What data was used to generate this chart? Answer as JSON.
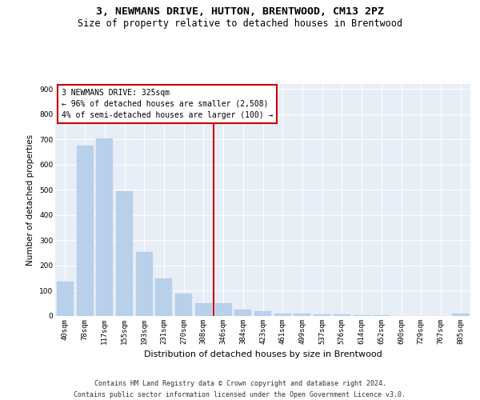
{
  "title": "3, NEWMANS DRIVE, HUTTON, BRENTWOOD, CM13 2PZ",
  "subtitle": "Size of property relative to detached houses in Brentwood",
  "xlabel": "Distribution of detached houses by size in Brentwood",
  "ylabel": "Number of detached properties",
  "categories": [
    "40sqm",
    "78sqm",
    "117sqm",
    "155sqm",
    "193sqm",
    "231sqm",
    "270sqm",
    "308sqm",
    "346sqm",
    "384sqm",
    "423sqm",
    "461sqm",
    "499sqm",
    "537sqm",
    "576sqm",
    "614sqm",
    "652sqm",
    "690sqm",
    "729sqm",
    "767sqm",
    "805sqm"
  ],
  "values": [
    135,
    675,
    705,
    495,
    253,
    150,
    90,
    52,
    52,
    25,
    18,
    10,
    10,
    7,
    5,
    3,
    2,
    1,
    0,
    0,
    8
  ],
  "bar_color": "#b8d0ea",
  "bar_edgecolor": "#b8d0ea",
  "vline_color": "#cc0000",
  "vline_pos": 7.5,
  "annotation_text": "3 NEWMANS DRIVE: 325sqm\n← 96% of detached houses are smaller (2,508)\n4% of semi-detached houses are larger (100) →",
  "annotation_box_facecolor": "#ffffff",
  "annotation_box_edgecolor": "#cc0000",
  "ylim": [
    0,
    920
  ],
  "yticks": [
    0,
    100,
    200,
    300,
    400,
    500,
    600,
    700,
    800,
    900
  ],
  "background_color": "#e8eef6",
  "footer_line1": "Contains HM Land Registry data © Crown copyright and database right 2024.",
  "footer_line2": "Contains public sector information licensed under the Open Government Licence v3.0.",
  "title_fontsize": 9.5,
  "subtitle_fontsize": 8.5,
  "xlabel_fontsize": 8,
  "ylabel_fontsize": 7.5,
  "tick_fontsize": 6.5,
  "ann_fontsize": 7,
  "footer_fontsize": 6
}
